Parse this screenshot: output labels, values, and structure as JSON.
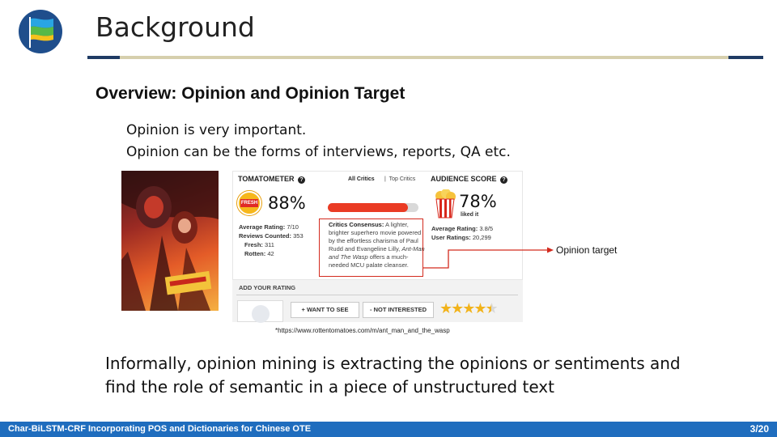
{
  "slide": {
    "title": "Background",
    "section_heading": "Overview: Opinion and Opinion Target",
    "intro_lines": [
      "Opinion is very important.",
      "Opinion can be the forms of interviews, reports, QA etc."
    ],
    "body_lines": [
      "Informally, opinion mining is extracting the opinions or sentiments and",
      "find the role of semantic in a piece of unstructured text"
    ],
    "annotation_label": "Opinion target",
    "footnote": "*https://www.rottentomatoes.com/m/ant_man_and_the_wasp"
  },
  "screenshot": {
    "tomatometer_label": "TOMATOMETER",
    "question_glyph": "?",
    "tab_all": "All Critics",
    "tab_top": "Top Critics",
    "audience_label": "AUDIENCE SCORE",
    "fresh_badge": "FRESH",
    "tomatometer_score": "88%",
    "tomatometer_fraction": 0.88,
    "audience_score": "78%",
    "liked": "liked it",
    "avg_rating_label": "Average Rating:",
    "avg_rating": "7/10",
    "reviews_counted_label": "Reviews Counted:",
    "reviews_counted": "353",
    "fresh_label": "Fresh:",
    "fresh_count": "311",
    "rotten_label": "Rotten:",
    "rotten_count": "42",
    "consensus_label": "Critics Consensus:",
    "consensus_text_1": " A lighter, brighter superhero movie powered by the effortless charisma of Paul Rudd and Evangeline Lilly, ",
    "consensus_italic": "Ant-Man and The Wasp",
    "consensus_text_2": " offers a much-needed MCU palate cleanser.",
    "aud_avg_label": "Average Rating:",
    "aud_avg": "3.8/5",
    "user_ratings_label": "User Ratings:",
    "user_ratings": "20,299",
    "add_rating": "ADD YOUR RATING",
    "want_btn": "+ WANT TO SEE",
    "not_btn": "- NOT INTERESTED",
    "stars": "★★★★★",
    "star_rating": 4.5
  },
  "footer": {
    "title": "Char-BiLSTM-CRF Incorporating POS and Dictionaries for Chinese OTE",
    "page": "3/20"
  },
  "colors": {
    "navy": "#1f3b64",
    "gold": "#d6cfad",
    "footer_blue": "#1f6dbe",
    "annotation_red": "#d32a1e",
    "tomato_red": "#ea3b24"
  }
}
